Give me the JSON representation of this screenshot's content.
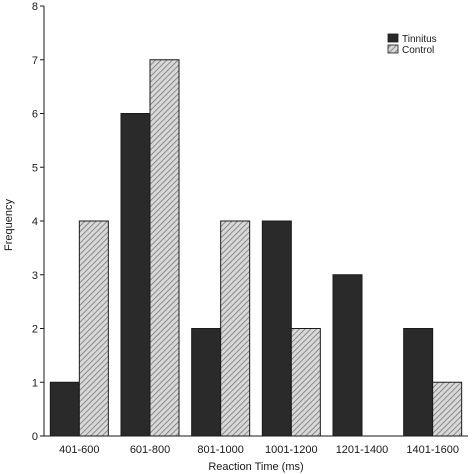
{
  "chart_data": {
    "type": "bar",
    "categories": [
      "401-600",
      "601-800",
      "801-1000",
      "1001-1200",
      "1201-1400",
      "1401-1600"
    ],
    "series": [
      {
        "name": "Tinnitus",
        "values": [
          1,
          6,
          2,
          4,
          3,
          2
        ],
        "color": "#2a2a2a",
        "pattern": "solid"
      },
      {
        "name": "Control",
        "values": [
          4,
          7,
          4,
          2,
          0,
          1
        ],
        "color": "#cfcfcf",
        "pattern": "hatched"
      }
    ],
    "xlabel": "Reaction Time (ms)",
    "ylabel": "Frequency",
    "ylim": [
      0,
      8
    ],
    "yticks": [
      0,
      1,
      2,
      3,
      4,
      5,
      6,
      7,
      8
    ],
    "grid": false,
    "legend_position": "top-right"
  }
}
